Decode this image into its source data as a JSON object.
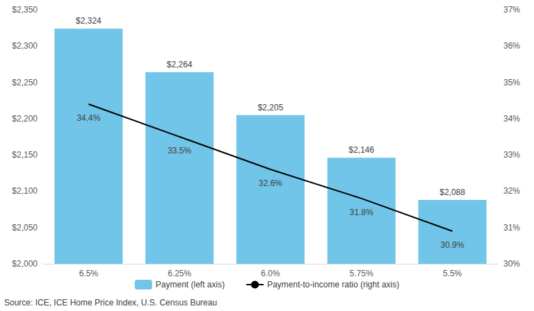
{
  "chart_data": {
    "type": "bar",
    "categories": [
      "6.5%",
      "6.25%",
      "6.0%",
      "5.75%",
      "5.5%"
    ],
    "series": [
      {
        "name": "Payment (left axis)",
        "type": "bar",
        "color": "#71c5e8",
        "values": [
          2324,
          2264,
          2205,
          2146,
          2088
        ],
        "value_labels": [
          "$2,324",
          "$2,264",
          "$2,205",
          "$2,146",
          "$2,088"
        ]
      },
      {
        "name": "Payment-to-income ratio (right axis)",
        "type": "line",
        "axis": "y2",
        "color": "#000000",
        "line_style": "solid",
        "values": [
          34.4,
          33.5,
          32.6,
          31.8,
          30.9
        ],
        "value_labels": [
          "34.4%",
          "33.5%",
          "32.6%",
          "31.8%",
          "30.9%"
        ]
      }
    ],
    "ylim": [
      2000,
      2350
    ],
    "yticks": [
      {
        "value": 2000,
        "label": "$2,000"
      },
      {
        "value": 2050,
        "label": "$2,050"
      },
      {
        "value": 2100,
        "label": "$2,100"
      },
      {
        "value": 2150,
        "label": "$2,150"
      },
      {
        "value": 2200,
        "label": "$2,200"
      },
      {
        "value": 2250,
        "label": "$2,250"
      },
      {
        "value": 2300,
        "label": "$2,300"
      },
      {
        "value": 2350,
        "label": "$2,350"
      }
    ],
    "y2lim": [
      30,
      37
    ],
    "y2ticks": [
      {
        "value": 30,
        "label": "30%"
      },
      {
        "value": 31,
        "label": "31%"
      },
      {
        "value": 32,
        "label": "32%"
      },
      {
        "value": 33,
        "label": "33%"
      },
      {
        "value": 34,
        "label": "34%"
      },
      {
        "value": 35,
        "label": "35%"
      },
      {
        "value": 36,
        "label": "36%"
      },
      {
        "value": 37,
        "label": "37%"
      }
    ],
    "grid": false,
    "legend": "bottom",
    "data_labels": true,
    "source": "Source: ICE, ICE Home Price Index, U.S. Census Bureau"
  }
}
